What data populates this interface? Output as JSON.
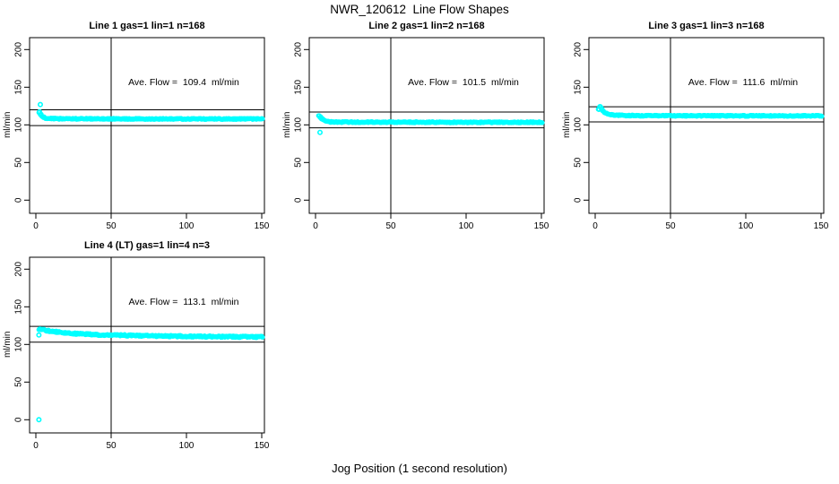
{
  "page": {
    "title": "NWR_120612  Line Flow Shapes",
    "xlabel": "Jog Position (1 second resolution)"
  },
  "colors": {
    "points": "#00FFFF",
    "axis": "#000000",
    "background": "#FFFFFF"
  },
  "axes": {
    "x_ticks": [
      0,
      50,
      100,
      150
    ],
    "y_ticks": [
      0,
      50,
      100,
      150,
      200
    ],
    "ylabel": "ml/min",
    "xlim": [
      0,
      155
    ],
    "ylim": [
      -18,
      216
    ],
    "vline_x": 50
  },
  "chart_data": [
    {
      "type": "scatter",
      "title": "Line 1 gas=1 lin=1 n=168",
      "annotation": "Ave. Flow =  109.4  ml/min",
      "ave_flow_ml_min": 109.4,
      "n": 168,
      "hlines": [
        120,
        99
      ],
      "band_points": [
        [
          2,
          117
        ],
        [
          3,
          113.5
        ],
        [
          4,
          111.5
        ],
        [
          5,
          110
        ],
        [
          6,
          109
        ],
        [
          9,
          108.3
        ],
        [
          15,
          108.1
        ],
        [
          50,
          108
        ],
        [
          100,
          107.9
        ],
        [
          150,
          107.8
        ]
      ],
      "band_halfwidth": 1.1,
      "outliers": [
        [
          3,
          127
        ]
      ]
    },
    {
      "type": "scatter",
      "title": "Line 2 gas=1 lin=2 n=168",
      "annotation": "Ave. Flow =  101.5  ml/min",
      "ave_flow_ml_min": 101.5,
      "n": 168,
      "hlines": [
        117,
        96
      ],
      "band_points": [
        [
          2,
          112
        ],
        [
          3,
          110
        ],
        [
          4,
          108.2
        ],
        [
          5,
          106.5
        ],
        [
          7,
          104.8
        ],
        [
          10,
          104
        ],
        [
          15,
          103.7
        ],
        [
          50,
          103.5
        ],
        [
          100,
          103.4
        ],
        [
          150,
          103.4
        ]
      ],
      "band_halfwidth": 1.1,
      "outliers": [
        [
          3,
          90
        ]
      ]
    },
    {
      "type": "scatter",
      "title": "Line 3 gas=1 lin=3 n=168",
      "annotation": "Ave. Flow =  111.6  ml/min",
      "ave_flow_ml_min": 111.6,
      "n": 168,
      "hlines": [
        124,
        104
      ],
      "band_points": [
        [
          2,
          121
        ],
        [
          3,
          124.5
        ],
        [
          4,
          121.5
        ],
        [
          5,
          118.5
        ],
        [
          6,
          116.5
        ],
        [
          8,
          114.5
        ],
        [
          12,
          113
        ],
        [
          20,
          112.4
        ],
        [
          50,
          112.1
        ],
        [
          100,
          112
        ],
        [
          150,
          112
        ]
      ],
      "band_halfwidth": 1.1,
      "outliers": []
    },
    {
      "type": "scatter",
      "title": "Line 4 (LT) gas=1 lin=4 n=3",
      "annotation": "Ave. Flow =  113.1  ml/min",
      "ave_flow_ml_min": 113.1,
      "n": 3,
      "hlines": [
        124,
        103
      ],
      "band_points": [
        [
          2,
          120
        ],
        [
          4,
          119.5
        ],
        [
          8,
          118.2
        ],
        [
          15,
          116.5
        ],
        [
          25,
          114.5
        ],
        [
          40,
          113
        ],
        [
          60,
          112
        ],
        [
          90,
          111
        ],
        [
          120,
          110.4
        ],
        [
          150,
          110
        ]
      ],
      "band_halfwidth": 1.7,
      "outliers": [
        [
          2,
          0
        ],
        [
          2,
          112.5
        ]
      ]
    }
  ]
}
